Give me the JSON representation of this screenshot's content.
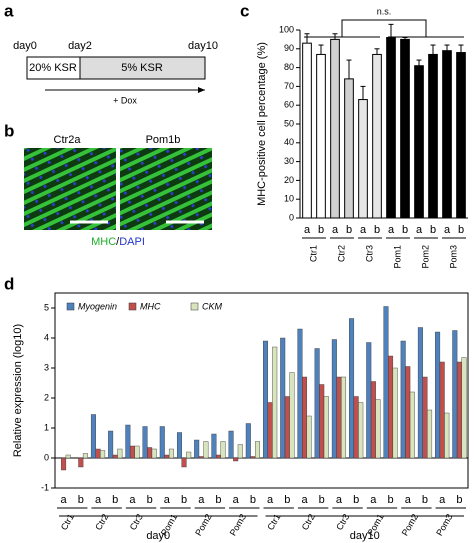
{
  "panels": [
    "a",
    "b",
    "c",
    "d"
  ],
  "timeline": {
    "days": [
      "day0",
      "day2",
      "day10"
    ],
    "phases": [
      "20% KSR",
      "5% KSR"
    ],
    "treatment": "+ Dox"
  },
  "images": {
    "labels": [
      "Ctr2a",
      "Pom1b"
    ],
    "stain": "MHC",
    "separator": "/",
    "counterstain": "DAPI"
  },
  "chart_data": [
    {
      "type": "bar",
      "y_label": "MHC-positive cell percentage (%)",
      "annotation": "n.s.",
      "categories": [
        "a",
        "b",
        "a",
        "b",
        "a",
        "b",
        "a",
        "b",
        "a",
        "b",
        "a",
        "b"
      ],
      "groups": [
        "Ctr1",
        "Ctr2",
        "Ctr3",
        "Pom1",
        "Pom2",
        "Pom3"
      ],
      "values": [
        93,
        87,
        95,
        74,
        63,
        87,
        96,
        95,
        81,
        87,
        89,
        88
      ],
      "errors": [
        5,
        5,
        3,
        10,
        7,
        3,
        7,
        1,
        3,
        5,
        3,
        4
      ],
      "colors": [
        "#ffffff",
        "#ffffff",
        "#d0d0d0",
        "#d0d0d0",
        "#e6e6e6",
        "#e6e6e6",
        "#000000",
        "#000000",
        "#000000",
        "#000000",
        "#000000",
        "#000000"
      ],
      "ylim": [
        0,
        100
      ],
      "yticks": [
        0,
        10,
        20,
        30,
        40,
        50,
        60,
        70,
        80,
        90,
        100
      ]
    },
    {
      "type": "grouped_bar",
      "y_label": "Relative expression (log10)",
      "categories": [
        "a",
        "b",
        "a",
        "b",
        "a",
        "b",
        "a",
        "b",
        "a",
        "b",
        "a",
        "b",
        "a",
        "b",
        "a",
        "b",
        "a",
        "b",
        "a",
        "b",
        "a",
        "b",
        "a",
        "b"
      ],
      "groups": [
        "Ctr1",
        "Ctr2",
        "Ctr3",
        "Pom1",
        "Pom2",
        "Pom3",
        "Ctr1",
        "Ctr2",
        "Ctr3",
        "Pom1",
        "Pom2",
        "Pom3"
      ],
      "periods": [
        "day0",
        "day10"
      ],
      "series": [
        {
          "name": "Myogenin",
          "color": "#4f81bd",
          "values": [
            0,
            0,
            1.45,
            0.9,
            1.1,
            1.05,
            1.05,
            0.85,
            0.6,
            0.8,
            0.9,
            1.15,
            3.9,
            4.0,
            4.3,
            3.65,
            3.95,
            4.65,
            3.85,
            5.05,
            3.9,
            4.35,
            4.2,
            4.25
          ]
        },
        {
          "name": "MHC",
          "color": "#c0504d",
          "values": [
            -0.4,
            -0.3,
            0.3,
            0.1,
            0.4,
            0.35,
            0.1,
            -0.3,
            0.05,
            0.1,
            -0.1,
            0.05,
            1.85,
            2.05,
            2.7,
            2.45,
            2.7,
            2.05,
            2.55,
            3.4,
            3.05,
            2.7,
            3.2,
            3.2
          ]
        },
        {
          "name": "CKM",
          "color": "#d7e4bd",
          "values": [
            0.1,
            0.15,
            0.25,
            0.3,
            0.4,
            0.3,
            0.3,
            0.2,
            0.55,
            0.55,
            0.45,
            0.55,
            3.7,
            2.85,
            1.4,
            2.05,
            2.7,
            1.85,
            1.95,
            3.0,
            2.2,
            1.6,
            1.5,
            3.35
          ]
        }
      ],
      "ylim": [
        -1,
        5.5
      ],
      "yticks": [
        -1,
        0,
        1,
        2,
        3,
        4,
        5
      ]
    }
  ]
}
